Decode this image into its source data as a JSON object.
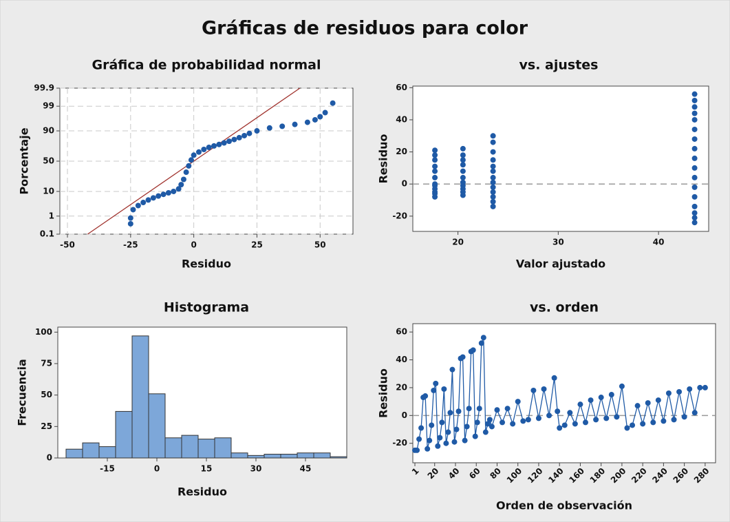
{
  "title": "Gráficas de residuos para color",
  "chart_data": [
    {
      "type": "scatter",
      "title": "Gráfica de probabilidad normal",
      "x_label": "Residuo",
      "y_label": "Porcentaje",
      "yscale": "probability",
      "grid": true,
      "xlim": [
        -53,
        63
      ],
      "ylim": [
        0.1,
        99.9
      ],
      "xticks": [
        -50,
        -25,
        0,
        25,
        50
      ],
      "yticks": [
        0.1,
        1,
        10,
        50,
        90,
        99,
        99.9
      ],
      "series": [
        {
          "color": "#1f5aa6",
          "x": [
            -25,
            -25,
            -24,
            -22,
            -20,
            -18,
            -16,
            -14,
            -12,
            -10,
            -8,
            -6,
            -5,
            -4,
            -3,
            -2,
            -1,
            0,
            2,
            4,
            6,
            8,
            10,
            12,
            14,
            16,
            18,
            20,
            22,
            25,
            30,
            35,
            40,
            45,
            48,
            50,
            52,
            55
          ],
          "values": [
            0.4,
            0.8,
            2,
            3,
            4,
            5,
            6,
            7,
            8,
            9,
            10,
            12,
            16,
            22,
            32,
            42,
            52,
            60,
            65,
            69,
            72,
            74,
            76,
            78,
            80,
            82,
            84,
            86,
            88,
            90,
            92,
            93,
            94,
            95,
            96,
            97,
            98,
            99.3
          ]
        }
      ],
      "fit_line": {
        "color": "#a0322d",
        "x": [
          -42,
          42
        ],
        "values": [
          0.1,
          99.9
        ]
      }
    },
    {
      "type": "scatter",
      "title": "vs. ajustes",
      "x_label": "Valor ajustado",
      "y_label": "Residuo",
      "xlim": [
        15.5,
        45
      ],
      "ylim": [
        -29.5,
        61
      ],
      "xticks": [
        20,
        30,
        40
      ],
      "yticks": [
        -20,
        0,
        20,
        40,
        60
      ],
      "reference_line": 0,
      "series": [
        {
          "color": "#1f5aa6",
          "x": [
            17.7,
            17.7,
            17.7,
            17.7,
            17.7,
            17.7,
            17.7,
            17.7,
            17.7,
            17.7,
            17.7,
            17.7,
            20.5,
            20.5,
            20.5,
            20.5,
            20.5,
            20.5,
            20.5,
            20.5,
            20.5,
            20.5,
            20.5,
            23.5,
            23.5,
            23.5,
            23.5,
            23.5,
            23.5,
            23.5,
            23.5,
            23.5,
            23.5,
            23.5,
            23.5,
            23.5,
            43.6,
            43.6,
            43.6,
            43.6,
            43.6,
            43.6,
            43.6,
            43.6,
            43.6,
            43.6,
            43.6,
            43.6,
            43.6,
            43.6,
            43.6,
            43.6,
            43.6
          ],
          "values": [
            21,
            18,
            15,
            11,
            8,
            4,
            0,
            -1,
            -3,
            -5,
            -6,
            -8,
            22,
            18,
            15,
            12,
            8,
            4,
            1,
            -1,
            -3,
            -5,
            -7,
            30,
            26,
            20,
            15,
            11,
            8,
            4,
            1,
            -2,
            -5,
            -8,
            -11,
            -14,
            56,
            52,
            48,
            44,
            40,
            34,
            28,
            22,
            16,
            10,
            4,
            -2,
            -8,
            -14,
            -18,
            -21,
            -24
          ]
        }
      ]
    },
    {
      "type": "histogram",
      "title": "Histograma",
      "x_label": "Residuo",
      "y_label": "Frecuencia",
      "xlim": [
        -30,
        57.5
      ],
      "ylim": [
        0,
        104
      ],
      "xticks": [
        -15,
        0,
        15,
        30,
        45
      ],
      "yticks": [
        0,
        25,
        50,
        75,
        100
      ],
      "color": "#7da7d9",
      "bins": [
        -27.5,
        -22.5,
        -17.5,
        -12.5,
        -7.5,
        -2.5,
        2.5,
        7.5,
        12.5,
        17.5,
        22.5,
        27.5,
        32.5,
        37.5,
        42.5,
        47.5,
        52.5,
        57.5
      ],
      "values": [
        7,
        12,
        9,
        37,
        97,
        51,
        16,
        18,
        15,
        16,
        4,
        2,
        3,
        3,
        4,
        4,
        1
      ]
    },
    {
      "type": "line",
      "title": "vs. orden",
      "x_label": "Orden de observación",
      "y_label": "Residuo",
      "xlim": [
        -1,
        290
      ],
      "ylim": [
        -34,
        66
      ],
      "xtick_rotation": 45,
      "xticks": [
        1,
        20,
        40,
        60,
        80,
        100,
        120,
        140,
        160,
        180,
        200,
        220,
        240,
        260,
        280
      ],
      "yticks": [
        -20,
        0,
        20,
        40,
        60
      ],
      "reference_line": 0,
      "series": [
        {
          "color": "#1f5aa6",
          "x": [
            1,
            3,
            5,
            7,
            9,
            11,
            13,
            15,
            17,
            19,
            21,
            23,
            25,
            27,
            29,
            31,
            33,
            35,
            37,
            39,
            41,
            43,
            45,
            47,
            49,
            51,
            53,
            55,
            57,
            59,
            61,
            63,
            65,
            67,
            69,
            71,
            73,
            75,
            80,
            85,
            90,
            95,
            100,
            105,
            110,
            115,
            120,
            125,
            130,
            135,
            138,
            140,
            145,
            150,
            155,
            160,
            165,
            170,
            175,
            180,
            185,
            190,
            195,
            200,
            205,
            210,
            215,
            220,
            225,
            230,
            235,
            240,
            245,
            250,
            255,
            260,
            265,
            270,
            275,
            280
          ],
          "values": [
            -25,
            -25,
            -17,
            -9,
            13,
            14,
            -24,
            -18,
            -7,
            18,
            23,
            -22,
            -16,
            -5,
            19,
            -20,
            -12,
            2,
            33,
            -19,
            -10,
            3,
            41,
            42,
            -18,
            -8,
            5,
            46,
            47,
            -15,
            -5,
            5,
            52,
            56,
            -12,
            -6,
            -3,
            -8,
            4,
            -5,
            5,
            -6,
            10,
            -4,
            -3,
            18,
            -2,
            19,
            0,
            27,
            3,
            -9,
            -7,
            2,
            -6,
            8,
            -5,
            11,
            -3,
            13,
            -2,
            15,
            -1,
            21,
            -9,
            -7,
            7,
            -6,
            9,
            -5,
            11,
            -4,
            16,
            -3,
            17,
            -1,
            19,
            2,
            20,
            20
          ]
        }
      ]
    }
  ]
}
